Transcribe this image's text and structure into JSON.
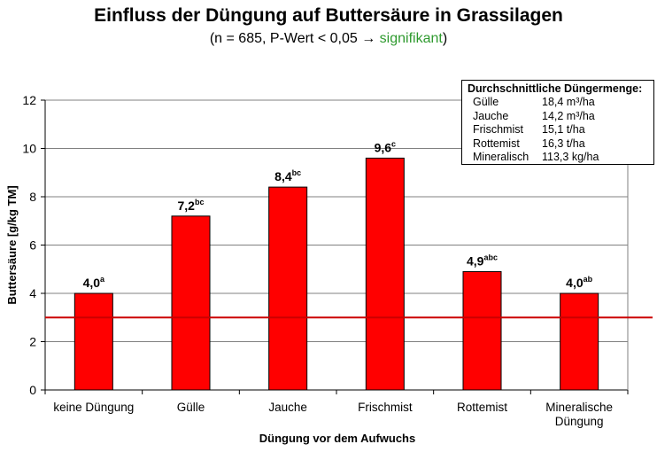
{
  "chart_data": {
    "type": "bar",
    "title": "Einfluss der Düngung auf Buttersäure in Grassilagen",
    "subtitle_main": "(n = 685, P-Wert < 0,05",
    "subtitle_arrow": "→",
    "subtitle_sig": "signifikant",
    "subtitle_close": ")",
    "xlabel": "Düngung vor dem Aufwuchs",
    "ylabel": "Buttersäure [g/kg TM]",
    "ylim": [
      0,
      12
    ],
    "yticks": [
      "0",
      "2",
      "4",
      "6",
      "8",
      "10",
      "12"
    ],
    "reference_line": 3,
    "grid": true,
    "categories": [
      {
        "label": [
          "keine Düngung"
        ]
      },
      {
        "label": [
          "Gülle"
        ]
      },
      {
        "label": [
          "Jauche"
        ]
      },
      {
        "label": [
          "Frischmist"
        ]
      },
      {
        "label": [
          "Rottemist"
        ]
      },
      {
        "label": [
          "Mineralische",
          "Düngung"
        ]
      }
    ],
    "values": [
      4.0,
      7.2,
      8.4,
      9.6,
      4.9,
      4.0
    ],
    "value_labels": [
      "4,0",
      "7,2",
      "8,4",
      "9,6",
      "4,9",
      "4,0"
    ],
    "significance": [
      "a",
      "bc",
      "bc",
      "c",
      "abc",
      "ab"
    ],
    "colors": {
      "bar": "#ff0000",
      "reference": "#cc0000",
      "grid": "#808080",
      "plot_bg": "#ffffff"
    }
  },
  "legend": {
    "title": "Durchschnittliche Düngermenge:",
    "items": [
      {
        "name": "Gülle",
        "value": "18,4 m³/ha"
      },
      {
        "name": "Jauche",
        "value": "14,2 m³/ha"
      },
      {
        "name": "Frischmist",
        "value": "15,1 t/ha"
      },
      {
        "name": "Rottemist",
        "value": "16,3 t/ha"
      },
      {
        "name": "Mineralisch",
        "value": "113,3 kg/ha"
      }
    ]
  }
}
